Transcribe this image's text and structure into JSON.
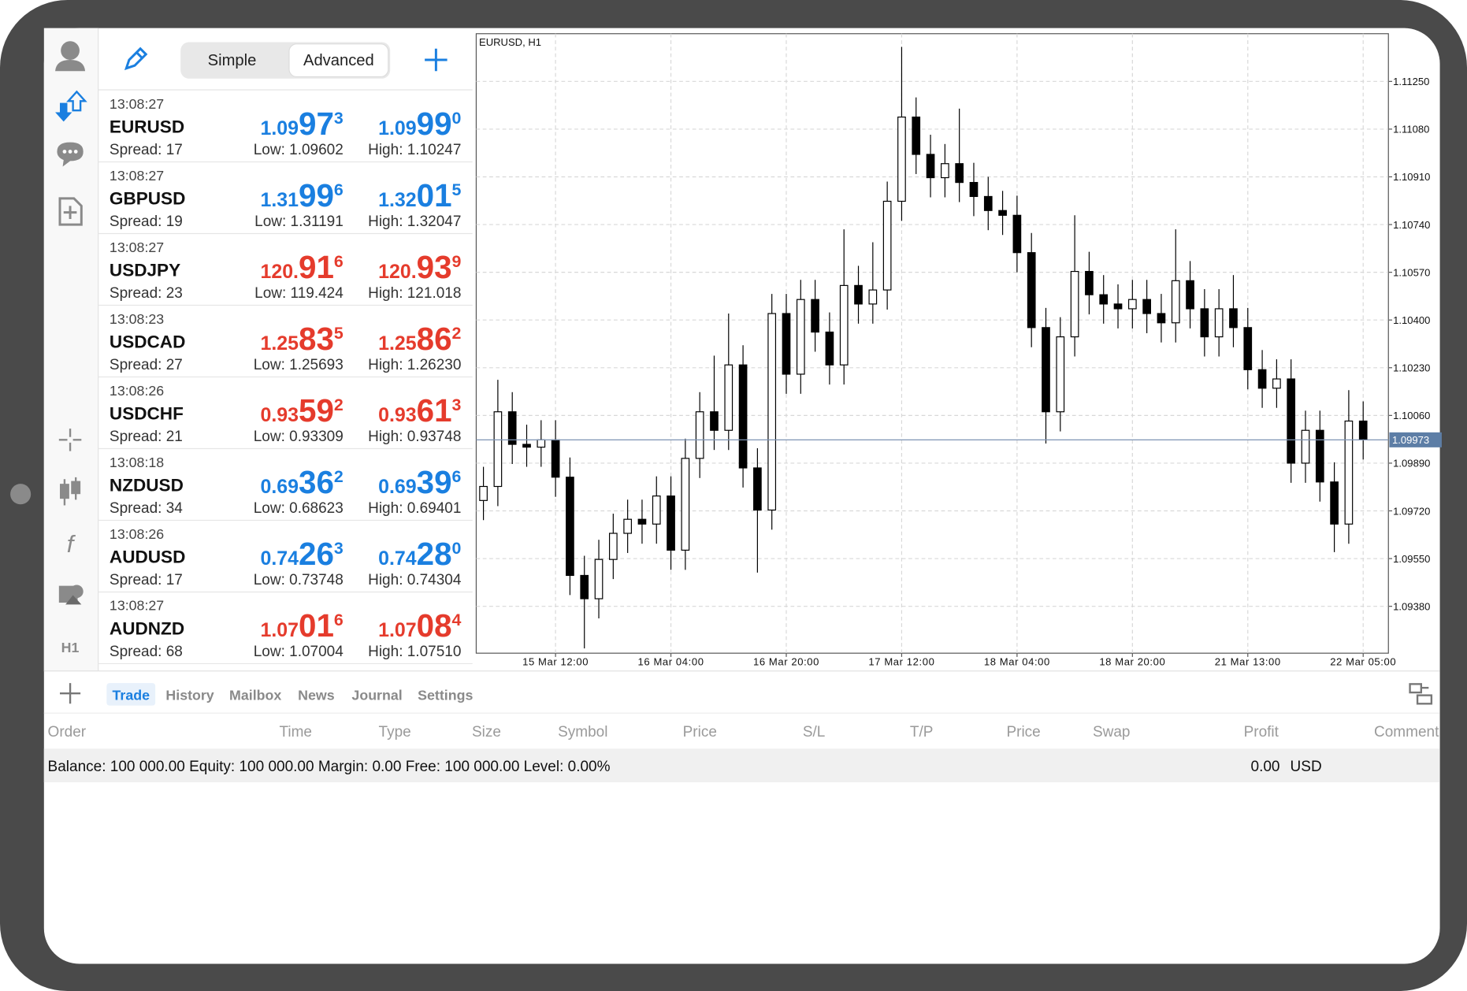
{
  "sidebar": {
    "timeframe": "H1"
  },
  "toolbar": {
    "modes": [
      "Simple",
      "Advanced"
    ]
  },
  "quotes": [
    {
      "time": "13:08:27",
      "symbol": "EURUSD",
      "spread": "Spread: 17",
      "bid": [
        "1.09",
        "97",
        "3"
      ],
      "ask": [
        "1.09",
        "99",
        "0"
      ],
      "low": "Low: 1.09602",
      "high": "High: 1.10247",
      "color": "#1a7fe0"
    },
    {
      "time": "13:08:27",
      "symbol": "GBPUSD",
      "spread": "Spread: 19",
      "bid": [
        "1.31",
        "99",
        "6"
      ],
      "ask": [
        "1.32",
        "01",
        "5"
      ],
      "low": "Low: 1.31191",
      "high": "High: 1.32047",
      "color": "#1a7fe0"
    },
    {
      "time": "13:08:27",
      "symbol": "USDJPY",
      "spread": "Spread: 23",
      "bid": [
        "120.",
        "91",
        "6"
      ],
      "ask": [
        "120.",
        "93",
        "9"
      ],
      "low": "Low: 119.424",
      "high": "High: 121.018",
      "color": "#e53b2c"
    },
    {
      "time": "13:08:23",
      "symbol": "USDCAD",
      "spread": "Spread: 27",
      "bid": [
        "1.25",
        "83",
        "5"
      ],
      "ask": [
        "1.25",
        "86",
        "2"
      ],
      "low": "Low: 1.25693",
      "high": "High: 1.26230",
      "color": "#e53b2c"
    },
    {
      "time": "13:08:26",
      "symbol": "USDCHF",
      "spread": "Spread: 21",
      "bid": [
        "0.93",
        "59",
        "2"
      ],
      "ask": [
        "0.93",
        "61",
        "3"
      ],
      "low": "Low: 0.93309",
      "high": "High: 0.93748",
      "color": "#e53b2c"
    },
    {
      "time": "13:08:18",
      "symbol": "NZDUSD",
      "spread": "Spread: 34",
      "bid": [
        "0.69",
        "36",
        "2"
      ],
      "ask": [
        "0.69",
        "39",
        "6"
      ],
      "low": "Low: 0.68623",
      "high": "High: 0.69401",
      "color": "#1a7fe0"
    },
    {
      "time": "13:08:26",
      "symbol": "AUDUSD",
      "spread": "Spread: 17",
      "bid": [
        "0.74",
        "26",
        "3"
      ],
      "ask": [
        "0.74",
        "28",
        "0"
      ],
      "low": "Low: 0.73748",
      "high": "High: 0.74304",
      "color": "#1a7fe0"
    },
    {
      "time": "13:08:27",
      "symbol": "AUDNZD",
      "spread": "Spread: 68",
      "bid": [
        "1.07",
        "01",
        "6"
      ],
      "ask": [
        "1.07",
        "08",
        "4"
      ],
      "low": "Low: 1.07004",
      "high": "High: 1.07510",
      "color": "#e53b2c"
    }
  ],
  "chart_data": {
    "type": "candlestick",
    "title": "EURUSD, H1",
    "x": [
      1,
      3,
      5,
      7,
      9,
      11,
      13,
      15,
      17,
      19,
      21,
      23,
      25,
      27,
      29,
      31,
      33,
      35,
      37,
      39,
      41,
      43,
      45,
      47,
      49,
      51,
      53,
      55,
      57,
      59,
      61,
      63,
      65,
      67,
      69,
      71,
      73,
      75,
      77,
      79,
      81,
      83,
      85,
      87,
      89,
      91,
      93,
      95,
      97,
      99,
      101,
      103,
      105,
      107,
      109,
      111,
      113,
      115,
      117,
      119,
      121,
      123
    ],
    "open": [
      1.09757,
      1.09807,
      1.10073,
      1.09957,
      1.09947,
      1.09973,
      1.0984,
      1.0949,
      1.09407,
      1.09547,
      1.0964,
      1.0969,
      1.09673,
      1.09773,
      1.0958,
      1.09907,
      1.10073,
      1.10007,
      1.1024,
      1.09873,
      1.09723,
      1.10423,
      1.10207,
      1.10473,
      1.10357,
      1.1024,
      1.10523,
      1.10457,
      1.10507,
      1.10823,
      1.11123,
      1.1099,
      1.10907,
      1.10957,
      1.1089,
      1.1084,
      1.1079,
      1.10773,
      1.1064,
      1.10373,
      1.10073,
      1.1034,
      1.10573,
      1.1049,
      1.10457,
      1.1044,
      1.10473,
      1.10423,
      1.1039,
      1.1054,
      1.1044,
      1.1034,
      1.1044,
      1.10373,
      1.10223,
      1.10157,
      1.1019,
      1.0989,
      1.10007,
      1.09823,
      1.09673,
      1.1004
    ],
    "high": [
      1.09877,
      1.10187,
      1.10143,
      1.10027,
      1.10043,
      1.10043,
      1.0991,
      1.0956,
      1.09617,
      1.0971,
      1.0976,
      1.0976,
      1.09843,
      1.09843,
      1.09977,
      1.10143,
      1.10273,
      1.10423,
      1.1031,
      1.09943,
      1.10493,
      1.10493,
      1.10543,
      1.10543,
      1.10427,
      1.10723,
      1.10593,
      1.10677,
      1.10893,
      1.11373,
      1.11193,
      1.1106,
      1.11027,
      1.11153,
      1.1096,
      1.1091,
      1.1086,
      1.10843,
      1.1071,
      1.10443,
      1.1041,
      1.10773,
      1.10643,
      1.1056,
      1.10527,
      1.10543,
      1.10543,
      1.10493,
      1.10723,
      1.1061,
      1.1051,
      1.1051,
      1.1056,
      1.10443,
      1.10293,
      1.1026,
      1.1026,
      1.10077,
      1.10077,
      1.09893,
      1.1015,
      1.1011
    ],
    "low": [
      1.09687,
      1.09737,
      1.09887,
      1.09877,
      1.09877,
      1.0977,
      1.0942,
      1.0923,
      1.09337,
      1.09477,
      1.0957,
      1.09603,
      1.09603,
      1.0951,
      1.0951,
      1.09837,
      1.09937,
      1.09937,
      1.09803,
      1.095,
      1.09653,
      1.10137,
      1.10137,
      1.10287,
      1.1017,
      1.1017,
      1.10387,
      1.10387,
      1.10437,
      1.10753,
      1.1092,
      1.10837,
      1.10837,
      1.1082,
      1.1077,
      1.1072,
      1.10703,
      1.1057,
      1.10303,
      1.0996,
      1.10003,
      1.1027,
      1.1042,
      1.10387,
      1.1037,
      1.1037,
      1.10353,
      1.1032,
      1.1032,
      1.1037,
      1.1027,
      1.1027,
      1.10303,
      1.10153,
      1.10087,
      1.10087,
      1.0982,
      1.0982,
      1.09753,
      1.09573,
      1.09603,
      1.09903
    ],
    "close": [
      1.09807,
      1.10073,
      1.09957,
      1.09947,
      1.09973,
      1.0984,
      1.0949,
      1.09407,
      1.09547,
      1.0964,
      1.0969,
      1.09673,
      1.09773,
      1.0958,
      1.09907,
      1.10073,
      1.10007,
      1.1024,
      1.09873,
      1.09723,
      1.10423,
      1.10207,
      1.10473,
      1.10357,
      1.1024,
      1.10523,
      1.10457,
      1.10507,
      1.10823,
      1.11123,
      1.1099,
      1.10907,
      1.10957,
      1.1089,
      1.1084,
      1.1079,
      1.10773,
      1.1064,
      1.10373,
      1.10073,
      1.1034,
      1.10573,
      1.1049,
      1.10457,
      1.1044,
      1.10473,
      1.10423,
      1.1039,
      1.1054,
      1.1044,
      1.1034,
      1.1044,
      1.10373,
      1.10223,
      1.10157,
      1.1019,
      1.0989,
      1.10007,
      1.09823,
      1.09673,
      1.1004,
      1.09973
    ],
    "up_color": "#ffffff",
    "down_color": "#000000",
    "xlim": [
      0,
      126.5
    ],
    "xticks": [
      {
        "value": 11,
        "label": "15 Mar 12:00"
      },
      {
        "value": 27,
        "label": "16 Mar 04:00"
      },
      {
        "value": 43,
        "label": "16 Mar 20:00"
      },
      {
        "value": 59,
        "label": "17 Mar 12:00"
      },
      {
        "value": 75,
        "label": "18 Mar 04:00"
      },
      {
        "value": 91,
        "label": "18 Mar 20:00"
      },
      {
        "value": 107,
        "label": "21 Mar 13:00"
      },
      {
        "value": 123,
        "label": "22 Mar 05:00"
      }
    ],
    "ylim": [
      1.09213,
      1.1142
    ],
    "yticks": [
      {
        "value": 1.1125,
        "label": "1.11250"
      },
      {
        "value": 1.1108,
        "label": "1.11080"
      },
      {
        "value": 1.1091,
        "label": "1.10910"
      },
      {
        "value": 1.1074,
        "label": "1.10740"
      },
      {
        "value": 1.1057,
        "label": "1.10570"
      },
      {
        "value": 1.104,
        "label": "1.10400"
      },
      {
        "value": 1.1023,
        "label": "1.10230"
      },
      {
        "value": 1.1006,
        "label": "1.10060"
      },
      {
        "value": 1.0989,
        "label": "1.09890"
      },
      {
        "value": 1.0972,
        "label": "1.09720"
      },
      {
        "value": 1.0955,
        "label": "1.09550"
      },
      {
        "value": 1.0938,
        "label": "1.09380"
      }
    ],
    "grid": true,
    "last_price": 1.09973
  },
  "terminal": {
    "tabs": [
      "Trade",
      "History",
      "Mailbox",
      "News",
      "Journal",
      "Settings"
    ],
    "columns": [
      "Order",
      "Time",
      "Type",
      "Size",
      "Symbol",
      "Price",
      "S/L",
      "T/P",
      "Price",
      "Swap",
      "Profit",
      "Comment"
    ],
    "balance": "Balance: 100 000.00 Equity: 100 000.00 Margin: 0.00 Free: 100 000.00 Level: 0.00%",
    "profit": "0.00",
    "currency": "USD"
  }
}
